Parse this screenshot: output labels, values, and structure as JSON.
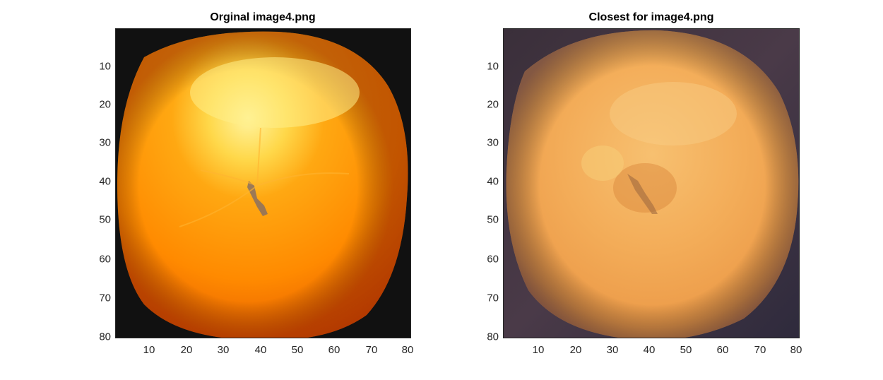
{
  "figure": {
    "left_panel": {
      "title": "Orginal image4.png",
      "x_ticks": [
        "10",
        "20",
        "30",
        "40",
        "50",
        "60",
        "70",
        "80"
      ],
      "y_ticks": [
        "10",
        "20",
        "30",
        "40",
        "50",
        "60",
        "70",
        "80"
      ],
      "image_description_icon": "orange-fruit-image"
    },
    "right_panel": {
      "title": "Closest for image4.png",
      "x_ticks": [
        "10",
        "20",
        "30",
        "40",
        "50",
        "60",
        "70",
        "80"
      ],
      "y_ticks": [
        "10",
        "20",
        "30",
        "40",
        "50",
        "60",
        "70",
        "80"
      ],
      "image_description_icon": "orange-fruit-image"
    },
    "colors": {
      "left_bright": "#ffde5a",
      "left_orange": "#ff8a00",
      "left_dark": "#e55a00",
      "left_bg": "#111111",
      "right_bright": "#f6c86a",
      "right_orange": "#f0a04a",
      "right_dark": "#d88a3c",
      "right_bg": "#3a2a3a"
    }
  }
}
